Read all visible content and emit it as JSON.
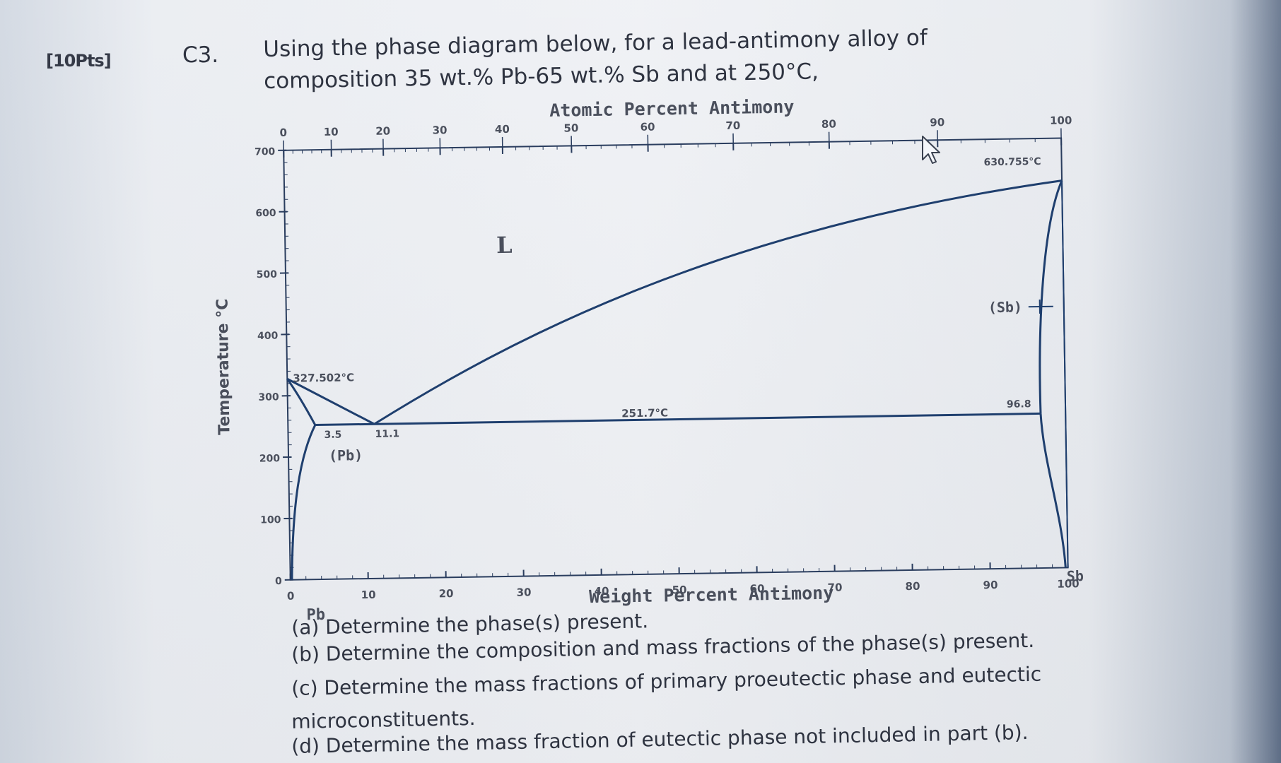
{
  "question": {
    "points": "[10Pts]",
    "number": "C3.",
    "prompt": "Using the phase diagram below, for a lead-antimony alloy of composition 35 wt.% Pb-65 wt.% Sb and at 250°C,",
    "parts": [
      "(a) Determine the phase(s) present.",
      "(b) Determine the composition and mass fractions of the phase(s) present.",
      "(c) Determine the mass fractions of primary proeutectic phase and eutectic",
      "microconstituents.",
      "(d) Determine the mass fraction of eutectic phase not included in part (b)."
    ]
  },
  "phase_diagram": {
    "top_axis_title": "Atomic Percent Antimony",
    "top_ticks": [
      "0",
      "10",
      "20",
      "30",
      "40",
      "50",
      "60",
      "70",
      "80",
      "90",
      "100"
    ],
    "bottom_axis_title": "Weight Percent Antimony",
    "bottom_ticks": [
      "0",
      "10",
      "20",
      "30",
      "40",
      "50",
      "60",
      "70",
      "80",
      "90",
      "100"
    ],
    "y_axis_title": "Temperature °C",
    "y_ticks": [
      "0",
      "100",
      "200",
      "300",
      "400",
      "500",
      "600",
      "700"
    ],
    "left_element": "Pb",
    "right_element": "Sb",
    "region_labels": {
      "liquid": "L",
      "pb_solid": "(Pb)",
      "sb_solid": "(Sb)"
    },
    "point_labels": {
      "pb_melting": "327.502°C",
      "sb_melting": "630.755°C",
      "eutectic_temp": "251.7°C",
      "pb_solvus": "3.5",
      "eutectic_comp": "11.1",
      "sb_solvus": "96.8"
    },
    "colors": {
      "line": "#1f3f6e",
      "axis_text": "#4a4f5c"
    }
  }
}
